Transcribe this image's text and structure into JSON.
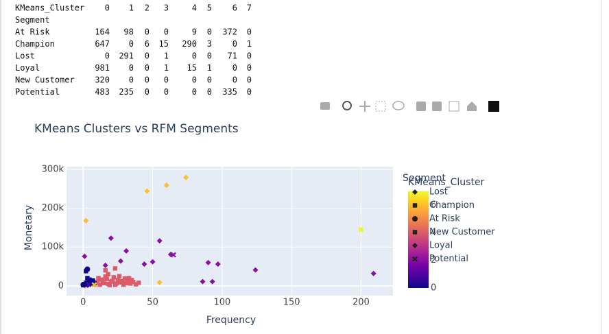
{
  "table": {
    "columns_title": "KMeans_Cluster",
    "columns": [
      "0",
      "1",
      "2",
      "3",
      "4",
      "5",
      "6",
      "7"
    ],
    "index_title": "Segment",
    "rows": [
      {
        "label": "At Risk",
        "values": [
          164,
          98,
          0,
          0,
          9,
          0,
          372,
          0
        ]
      },
      {
        "label": "Champion",
        "values": [
          647,
          0,
          6,
          15,
          290,
          3,
          0,
          1
        ]
      },
      {
        "label": "Lost",
        "values": [
          0,
          291,
          0,
          1,
          0,
          0,
          71,
          0
        ]
      },
      {
        "label": "Loyal",
        "values": [
          981,
          0,
          0,
          1,
          15,
          1,
          0,
          0
        ]
      },
      {
        "label": "New Customer",
        "values": [
          320,
          0,
          0,
          0,
          0,
          0,
          0,
          0
        ]
      },
      {
        "label": "Potential",
        "values": [
          483,
          235,
          0,
          0,
          0,
          0,
          335,
          0
        ]
      }
    ]
  },
  "chart_data": {
    "type": "scatter",
    "title": "KMeans Clusters vs RFM Segments",
    "x_label": "Frequency",
    "y_label": "Monetary",
    "xlim": [
      -12,
      223
    ],
    "ylim": [
      -25000,
      307000
    ],
    "xticks": [
      0,
      50,
      100,
      150,
      200
    ],
    "yticks": [
      0,
      {
        "value": 100000,
        "label": "100k"
      },
      {
        "value": 200000,
        "label": "200k"
      },
      {
        "value": 300000,
        "label": "300k"
      }
    ],
    "grid": true,
    "legend_title": "Segment",
    "colorbar": {
      "title": "KMeans_Cluster",
      "range": [
        0,
        7
      ],
      "ticks": [
        0,
        2,
        4,
        6
      ],
      "colorscale": [
        "#0d0887",
        "#46039f",
        "#7201a8",
        "#9c179e",
        "#bd3786",
        "#d8576b",
        "#ed7953",
        "#fb9f3a",
        "#fdca26",
        "#f0f921"
      ]
    },
    "series": [
      {
        "name": "Lost",
        "symbol": "diamond",
        "x": [
          2,
          60,
          74,
          46,
          55,
          1
        ],
        "y": [
          168000,
          259000,
          279000,
          244000,
          9000,
          2000
        ],
        "cluster": [
          6,
          6,
          6,
          6,
          6,
          1
        ]
      },
      {
        "name": "Champion",
        "symbol": "square",
        "x": [
          8,
          10,
          12,
          14,
          15,
          17,
          18,
          20,
          22,
          24,
          25,
          27,
          29,
          30,
          32,
          34,
          36,
          38,
          40,
          11,
          16,
          19,
          23,
          26,
          31,
          35,
          13,
          21,
          28,
          33,
          16,
          18,
          23,
          200
        ],
        "y": [
          4000,
          9000,
          3000,
          14000,
          7000,
          18000,
          5000,
          11000,
          22000,
          6000,
          15000,
          9000,
          3000,
          19000,
          12000,
          6000,
          10000,
          4000,
          8000,
          20000,
          24000,
          2000,
          3000,
          25000,
          7000,
          15000,
          16000,
          13000,
          12000,
          20000,
          40000,
          30000,
          45000,
          145000
        ],
        "cluster": [
          4,
          4,
          4,
          4,
          4,
          4,
          4,
          4,
          4,
          4,
          4,
          4,
          4,
          4,
          4,
          4,
          4,
          4,
          4,
          4,
          4,
          4,
          4,
          4,
          4,
          4,
          4,
          4,
          4,
          4,
          4,
          4,
          4,
          7
        ]
      },
      {
        "name": "At Risk",
        "symbol": "circle",
        "x": [
          0,
          1,
          5,
          7,
          3
        ],
        "y": [
          3000,
          1000,
          15000,
          9000,
          43000
        ],
        "cluster": [
          0,
          6,
          0,
          0,
          0
        ]
      },
      {
        "name": "New Customer",
        "symbol": "square",
        "x": [
          0,
          1,
          2,
          3,
          4,
          5,
          6,
          3,
          2,
          1,
          7,
          8
        ],
        "y": [
          2000,
          5000,
          8000,
          3000,
          12000,
          6000,
          10000,
          20000,
          38000,
          4000,
          14000,
          7000
        ],
        "cluster": [
          0,
          0,
          0,
          0,
          0,
          0,
          0,
          0,
          0,
          0,
          0,
          0
        ]
      },
      {
        "name": "Loyal",
        "symbol": "diamond",
        "x": [
          20,
          31,
          55,
          63,
          90,
          97,
          86,
          93,
          124,
          209,
          50,
          44,
          27,
          16,
          1
        ],
        "y": [
          123000,
          90000,
          116000,
          81000,
          60000,
          56000,
          11000,
          11000,
          41000,
          32000,
          62000,
          56000,
          64000,
          53000,
          76000
        ],
        "cluster": [
          2,
          2,
          2,
          2,
          2,
          2,
          2,
          2,
          2,
          2,
          2,
          2,
          2,
          2,
          2
        ]
      },
      {
        "name": "Potential",
        "symbol": "x",
        "x": [
          2,
          4,
          6,
          8,
          65
        ],
        "y": [
          2000,
          4000,
          7000,
          3000,
          80000
        ],
        "cluster": [
          0,
          1,
          0,
          6,
          2
        ]
      }
    ]
  }
}
